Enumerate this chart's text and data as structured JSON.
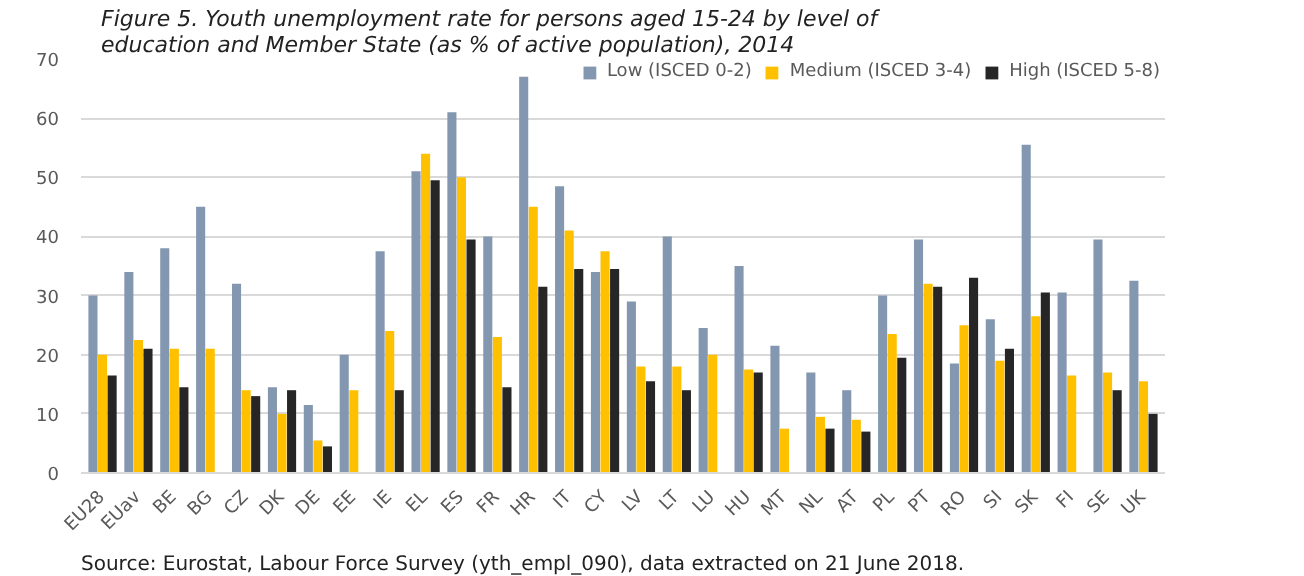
{
  "chart_data": {
    "type": "bar",
    "title": "Figure 5.    Youth unemployment rate for persons aged 15-24 by level of education and Member State (as % of active population), 2014",
    "categories": [
      "EU28",
      "EUav",
      "BE",
      "BG",
      "CZ",
      "DK",
      "DE",
      "EE",
      "IE",
      "EL",
      "ES",
      "FR",
      "HR",
      "IT",
      "CY",
      "LV",
      "LT",
      "LU",
      "HU",
      "MT",
      "NL",
      "AT",
      "PL",
      "PT",
      "RO",
      "SI",
      "SK",
      "FI",
      "SE",
      "UK"
    ],
    "series": [
      {
        "name": "Low (ISCED 0-2)",
        "color": "#8497b0",
        "values": [
          30,
          34,
          38,
          45,
          32,
          14.5,
          11.5,
          20,
          37.5,
          51,
          61,
          40,
          67,
          48.5,
          34,
          29,
          40,
          24.5,
          35,
          21.5,
          17,
          14,
          30,
          39.5,
          18.5,
          26,
          55.5,
          30.5,
          39.5,
          32.5
        ]
      },
      {
        "name": "Medium (ISCED 3-4)",
        "color": "#ffc000",
        "values": [
          20,
          22.5,
          21,
          21,
          14,
          10,
          5.5,
          14,
          24,
          54,
          50,
          23,
          45,
          41,
          37.5,
          18,
          18,
          20,
          17.5,
          7.5,
          9.5,
          9,
          23.5,
          32,
          25,
          19,
          26.5,
          16.5,
          17,
          15.5
        ]
      },
      {
        "name": "High (ISCED 5-8)",
        "color": "#262626",
        "values": [
          16.5,
          21,
          14.5,
          null,
          13,
          14,
          4.5,
          null,
          14,
          49.5,
          39.5,
          14.5,
          31.5,
          34.5,
          34.5,
          15.5,
          14,
          null,
          17,
          null,
          7.5,
          7,
          19.5,
          31.5,
          33,
          21,
          30.5,
          null,
          14,
          10
        ]
      }
    ],
    "ylim": [
      0,
      70
    ],
    "yticks": [
      0,
      10,
      20,
      30,
      40,
      50,
      60,
      70
    ],
    "grid": "y",
    "legend": "top right",
    "annotations": [
      "Source: Eurostat, Labour Force Survey (yth_empl_090), data extracted on 21 June 2018."
    ]
  }
}
